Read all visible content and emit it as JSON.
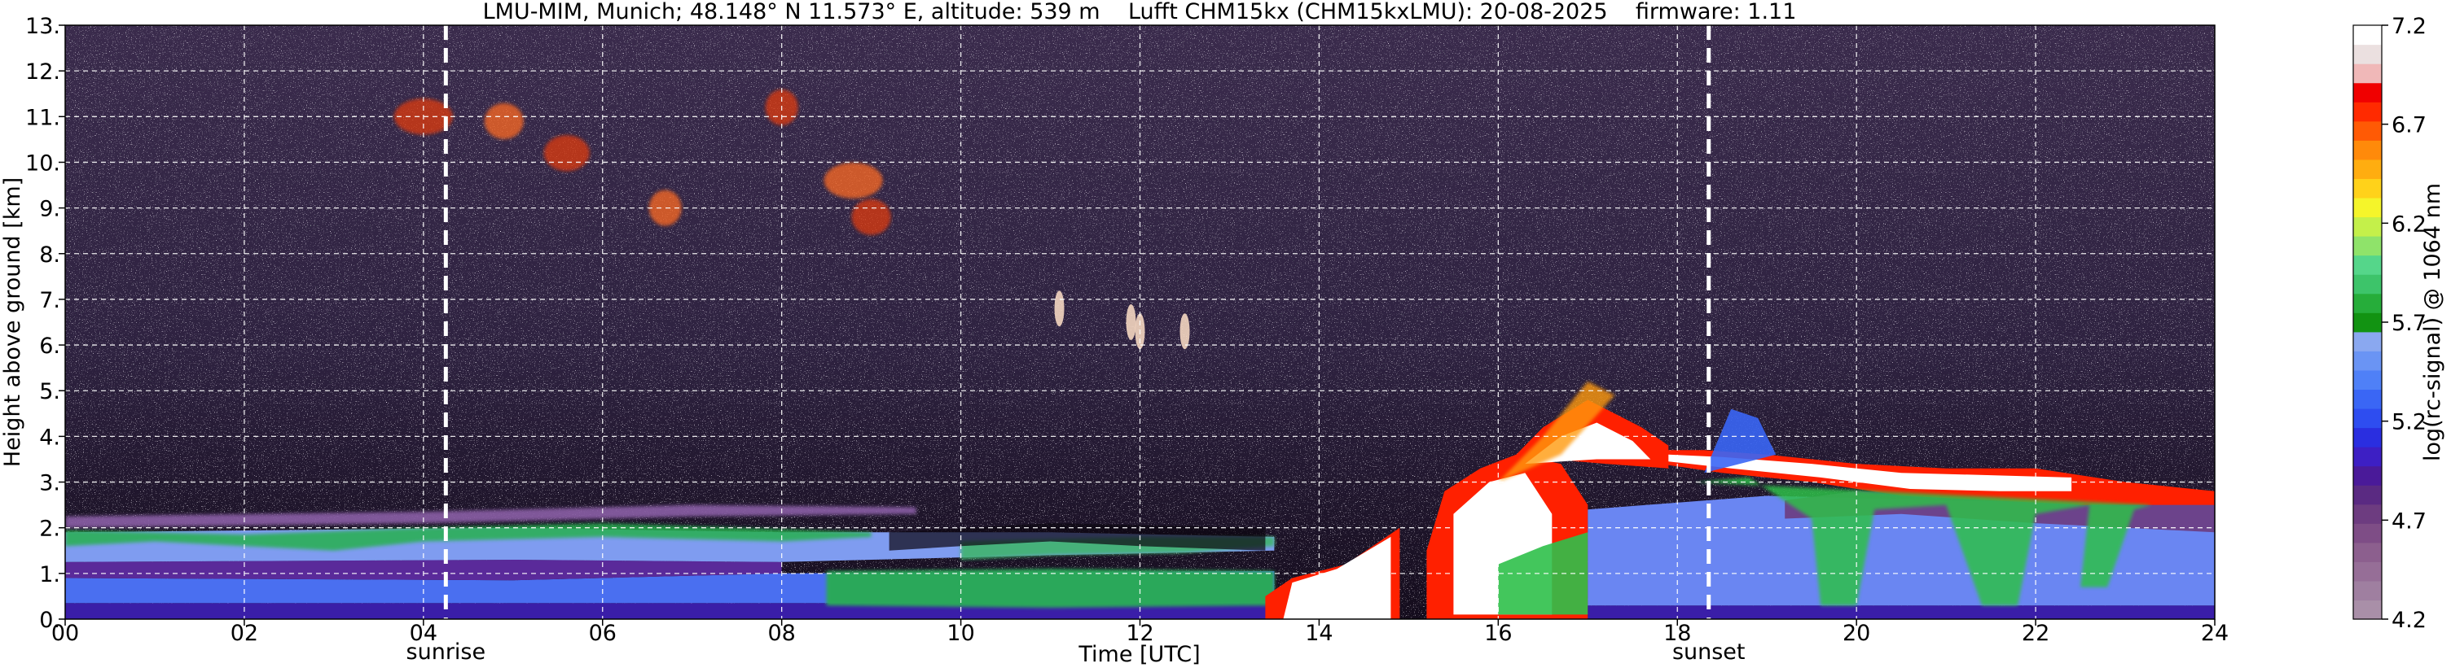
{
  "chart_data": {
    "type": "heatmap",
    "title": "LMU-MIM, Munich; 48.148° N 11.573° E, altitude: 539 m    Lufft CHM15kx (CHM15kxLMU): 20-08-2025    firmware: 1.11",
    "xlabel": "Time [UTC]",
    "ylabel": "Height above ground [km]",
    "colorbar_label": "log(rc-signal) @ 1064 nm",
    "xlim": [
      0,
      24
    ],
    "ylim": [
      0,
      13
    ],
    "x_ticks": [
      0,
      2,
      4,
      6,
      8,
      10,
      12,
      14,
      16,
      18,
      20,
      22,
      24
    ],
    "x_tick_labels": [
      "00",
      "02",
      "04",
      "06",
      "08",
      "10",
      "12",
      "14",
      "16",
      "18",
      "20",
      "22",
      "24"
    ],
    "y_ticks": [
      0,
      1,
      2,
      3,
      4,
      5,
      6,
      7,
      8,
      9,
      10,
      11,
      12,
      13
    ],
    "y_tick_labels": [
      "0.",
      "1.",
      "2.",
      "3.",
      "4.",
      "5.",
      "6.",
      "7.",
      "8.",
      "9.",
      "10.",
      "11.",
      "12.",
      "13."
    ],
    "grid": true,
    "markers": [
      {
        "label": "sunrise",
        "time": 4.25
      },
      {
        "label": "sunset",
        "time": 18.35
      }
    ],
    "colorbar": {
      "range": [
        4.2,
        7.2
      ],
      "ticks": [
        "4.2",
        "4.7",
        "5.2",
        "5.7",
        "6.2",
        "6.7",
        "7.2"
      ],
      "tick_values": [
        4.2,
        4.7,
        5.2,
        5.7,
        6.2,
        6.7,
        7.2
      ],
      "colors": [
        "#a98fa8",
        "#9f7fa0",
        "#966e97",
        "#8c5f8e",
        "#7e4d86",
        "#6d3c80",
        "#5a2a82",
        "#4a1a99",
        "#3d1fc4",
        "#2a2ee0",
        "#2e4df0",
        "#3a66f5",
        "#4f80f7",
        "#6a94f4",
        "#8aa8f0",
        "#129312",
        "#26ad3a",
        "#3dc46a",
        "#55d68a",
        "#8fe36a",
        "#c4f04a",
        "#f5f52a",
        "#ffd21a",
        "#ffad10",
        "#ff8a0a",
        "#ff5a05",
        "#ff2a00",
        "#f00000",
        "#f0b8b8",
        "#ebe0e0",
        "#ffffff"
      ]
    },
    "features": [
      {
        "kind": "boundary_layer",
        "t_start": 0,
        "t_end": 13.5,
        "top_km": 2.2
      },
      {
        "kind": "green_aerosol_layer",
        "t_start": 8.5,
        "t_end": 13.5,
        "bottom_km": 0.3,
        "top_km": 1.1
      },
      {
        "kind": "cirrus",
        "t_start": 3.7,
        "t_end": 9.0,
        "bottom_km": 8.5,
        "top_km": 11.5
      },
      {
        "kind": "convective_clouds",
        "t_start": 13.4,
        "t_end": 17.8,
        "bottom_km": 0.0,
        "top_km": 5.4
      },
      {
        "kind": "cloud_layer",
        "t_start": 17.8,
        "t_end": 24,
        "bottom_km": 2.5,
        "top_km": 3.8
      }
    ]
  }
}
